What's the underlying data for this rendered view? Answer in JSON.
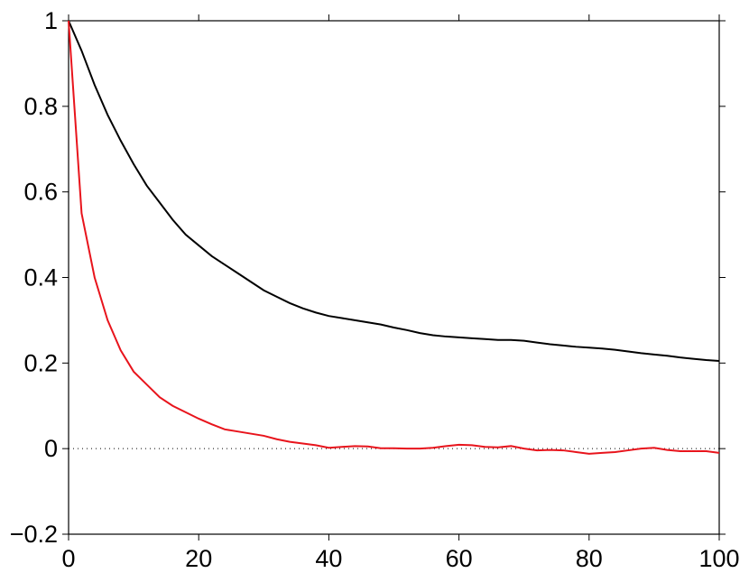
{
  "chart_data": {
    "type": "line",
    "x": [
      0,
      2,
      4,
      6,
      8,
      10,
      12,
      14,
      16,
      18,
      20,
      22,
      24,
      26,
      28,
      30,
      32,
      34,
      36,
      38,
      40,
      42,
      44,
      46,
      48,
      50,
      52,
      54,
      56,
      58,
      60,
      62,
      64,
      66,
      68,
      70,
      72,
      74,
      76,
      78,
      80,
      82,
      84,
      86,
      88,
      90,
      92,
      94,
      96,
      98,
      100
    ],
    "series": [
      {
        "color": "#000000",
        "values": [
          1,
          0.93,
          0.85,
          0.78,
          0.72,
          0.665,
          0.615,
          0.575,
          0.535,
          0.5,
          0.475,
          0.45,
          0.43,
          0.41,
          0.39,
          0.37,
          0.355,
          0.34,
          0.328,
          0.318,
          0.31,
          0.305,
          0.3,
          0.295,
          0.29,
          0.283,
          0.277,
          0.27,
          0.265,
          0.262,
          0.26,
          0.258,
          0.256,
          0.254,
          0.254,
          0.252,
          0.248,
          0.244,
          0.241,
          0.238,
          0.236,
          0.234,
          0.231,
          0.227,
          0.223,
          0.22,
          0.217,
          0.213,
          0.21,
          0.207,
          0.205
        ]
      },
      {
        "color": "#e8141c",
        "values": [
          1,
          0.55,
          0.4,
          0.3,
          0.23,
          0.18,
          0.15,
          0.12,
          0.1,
          0.085,
          0.07,
          0.057,
          0.045,
          0.04,
          0.035,
          0.03,
          0.022,
          0.016,
          0.012,
          0.008,
          0.002,
          0.004,
          0.006,
          0.005,
          0.001,
          0.001,
          0,
          0,
          0.002,
          0.006,
          0.009,
          0.008,
          0.004,
          0.003,
          0.006,
          0,
          -0.004,
          -0.003,
          -0.004,
          -0.008,
          -0.012,
          -0.01,
          -0.008,
          -0.004,
          0,
          0.002,
          -0.003,
          -0.006,
          -0.006,
          -0.006,
          -0.01
        ]
      }
    ],
    "xlim": [
      0,
      100
    ],
    "xticks": [
      0,
      20,
      40,
      60,
      80,
      100
    ],
    "ylim": [
      -0.2,
      1
    ],
    "yticks": [
      {
        "value": -0.2,
        "label": "−0.2"
      },
      0,
      0.2,
      0.4,
      0.6,
      0.8,
      1
    ],
    "reference_line": 0
  }
}
